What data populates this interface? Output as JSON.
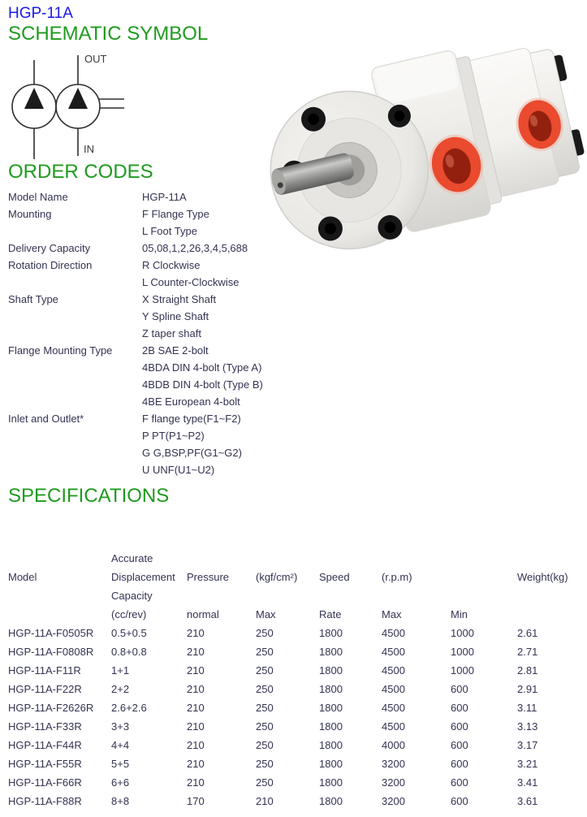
{
  "title": "HGP-11A",
  "colors": {
    "title_blue": "#1a1ae6",
    "heading_green": "#1E9B1E",
    "body_text": "#333352",
    "port_red": "#ea4a2d"
  },
  "schematic": {
    "heading": "SCHEMATIC SYMBOL",
    "out_label": "OUT",
    "in_label": "IN"
  },
  "order_codes": {
    "heading": "ORDER CODES",
    "rows": [
      {
        "label": "Model Name",
        "value": "HGP-11A"
      },
      {
        "label": "Mounting",
        "value": "F Flange Type"
      },
      {
        "label": "",
        "value": "L Foot Type"
      },
      {
        "label": "Delivery Capacity",
        "value": "05,08,1,2,26,3,4,5,688"
      },
      {
        "label": "Rotation Direction",
        "value": "R Clockwise"
      },
      {
        "label": "",
        "value": "L Counter-Clockwise"
      },
      {
        "label": "Shaft Type",
        "value": "X Straight Shaft"
      },
      {
        "label": "",
        "value": "Y Spline Shaft"
      },
      {
        "label": "",
        "value": "Z taper shaft"
      },
      {
        "label": "Flange Mounting Type",
        "value": "2B SAE 2-bolt"
      },
      {
        "label": "",
        "value": "4BDA DIN 4-bolt (Type A)"
      },
      {
        "label": "",
        "value": "4BDB DIN 4-bolt (Type B)"
      },
      {
        "label": "",
        "value": "4BE European 4-bolt"
      },
      {
        "label": "Inlet and Outlet*",
        "value": "F flange type(F1~F2)"
      },
      {
        "label": "",
        "value": "P PT(P1~P2)"
      },
      {
        "label": "",
        "value": "G G,BSP,PF(G1~G2)"
      },
      {
        "label": "",
        "value": "U UNF(U1~U2)"
      }
    ]
  },
  "specifications": {
    "heading": "SPECIFICATIONS",
    "table": {
      "header_row1": [
        "Model",
        "Accurate Displacement Capacity",
        "Pressure",
        "(kgf/cm²)",
        "Speed",
        "(r.p.m)",
        "",
        "Weight(kg)"
      ],
      "header_row2": [
        "",
        "(cc/rev)",
        "normal",
        "Max",
        "Rate",
        "Max",
        "Min",
        ""
      ],
      "rows": [
        [
          "HGP-11A-F0505R",
          "0.5+0.5",
          "210",
          "250",
          "1800",
          "4500",
          "1000",
          "2.61"
        ],
        [
          "HGP-11A-F0808R",
          "0.8+0.8",
          "210",
          "250",
          "1800",
          "4500",
          "1000",
          "2.71"
        ],
        [
          "HGP-11A-F11R",
          "1+1",
          "210",
          "250",
          "1800",
          "4500",
          "1000",
          "2.81"
        ],
        [
          "HGP-11A-F22R",
          "2+2",
          "210",
          "250",
          "1800",
          "4500",
          "600",
          "2.91"
        ],
        [
          "HGP-11A-F2626R",
          "2.6+2.6",
          "210",
          "250",
          "1800",
          "4500",
          "600",
          "3.11"
        ],
        [
          "HGP-11A-F33R",
          "3+3",
          "210",
          "250",
          "1800",
          "4500",
          "600",
          "3.13"
        ],
        [
          "HGP-11A-F44R",
          "4+4",
          "210",
          "250",
          "1800",
          "4000",
          "600",
          "3.17"
        ],
        [
          "HGP-11A-F55R",
          "5+5",
          "210",
          "250",
          "1800",
          "3200",
          "600",
          "3.21"
        ],
        [
          "HGP-11A-F66R",
          "6+6",
          "210",
          "250",
          "1800",
          "3200",
          "600",
          "3.41"
        ],
        [
          "HGP-11A-F88R",
          "8+8",
          "170",
          "210",
          "1800",
          "3200",
          "600",
          "3.61"
        ]
      ]
    }
  }
}
